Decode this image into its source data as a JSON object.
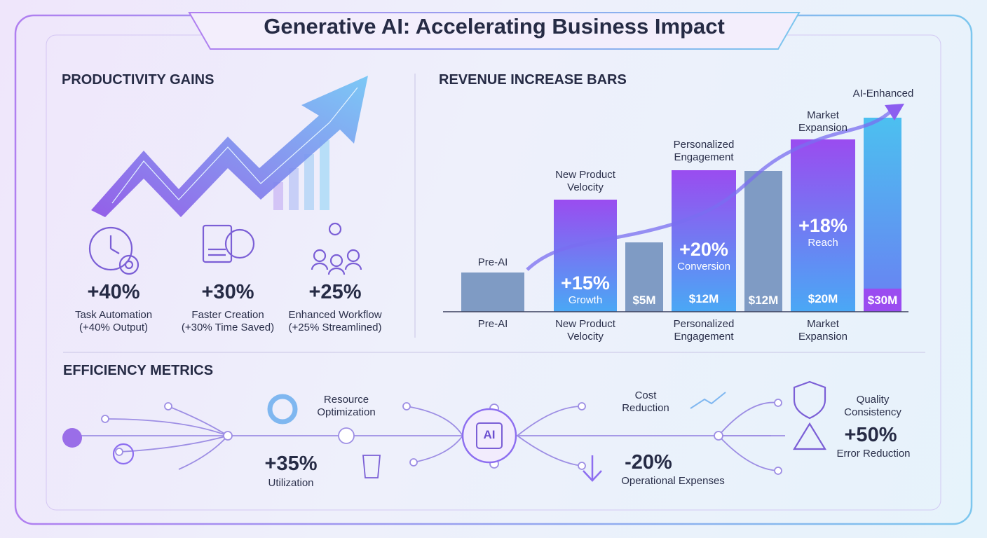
{
  "header": {
    "title": "Generative AI: Accelerating Business Impact"
  },
  "productivity": {
    "title": "PRODUCTIVITY GAINS",
    "items": [
      {
        "value": "+40%",
        "label": "Task Automation",
        "note": "(+40% Output)"
      },
      {
        "value": "+30%",
        "label": "Faster Creation",
        "note": "(+30% Time Saved)"
      },
      {
        "value": "+25%",
        "label": "Enhanced Workflow",
        "note": "(+25% Streamlined)"
      }
    ]
  },
  "revenue": {
    "title": "REVENUE INCREASE BARS",
    "bars": [
      {
        "label": "Pre-AI"
      },
      {
        "label": "New Product Velocity",
        "value": "+15%",
        "note": "Growth"
      },
      {
        "amount": "$5M"
      },
      {
        "label": "Personalized Engagement",
        "value": "+20%",
        "note": "Conversion",
        "amount": "$12M"
      },
      {
        "amount": "$12M"
      },
      {
        "label": "Market Expansion",
        "value": "+18%",
        "note": "Reach",
        "amount": "$20M"
      },
      {
        "label": "AI-Enhanced",
        "amount": "$30M"
      }
    ],
    "axis_labels": [
      "Pre-AI",
      "New Product Velocity",
      "Personalized Engagement",
      "Market Expansion"
    ]
  },
  "efficiency": {
    "title": "EFFICIENCY METRICS",
    "hub": "AI",
    "metrics": [
      {
        "label": "Resource Optimization",
        "value": "+35%",
        "note": "Utilization"
      },
      {
        "label": "Cost Reduction",
        "value": "-20%",
        "note": "Operational Expenses"
      },
      {
        "label": "Quality Consistency",
        "value": "+50%",
        "note": "Error Reduction"
      }
    ]
  }
}
